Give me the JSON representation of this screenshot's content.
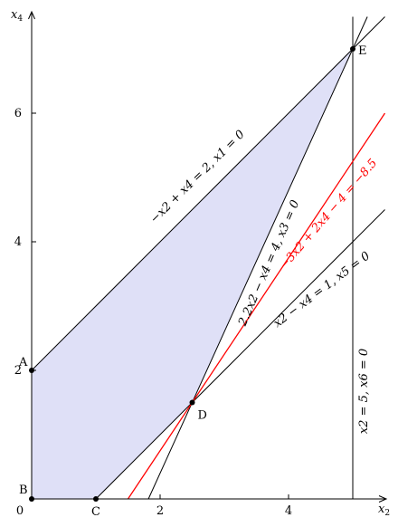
{
  "axes": {
    "x_label": "x2",
    "y_label": "x4",
    "x_label_main": "x",
    "x_label_sub": "2",
    "y_label_main": "x",
    "y_label_sub": "4",
    "origin_label": "0",
    "x_ticks": [
      {
        "value": 2,
        "label": "2"
      },
      {
        "value": 4,
        "label": "4"
      }
    ],
    "y_ticks": [
      {
        "value": 2,
        "label": "2"
      },
      {
        "value": 4,
        "label": "4"
      },
      {
        "value": 6,
        "label": "6"
      }
    ],
    "x_range": [
      0,
      5.5
    ],
    "y_range": [
      0,
      7.5
    ]
  },
  "region": {
    "vertices": [
      [
        0,
        0
      ],
      [
        1,
        0
      ],
      [
        2.5,
        1.5
      ],
      [
        5,
        7
      ],
      [
        0,
        2
      ]
    ],
    "fill": "#dfe0f7"
  },
  "points": [
    {
      "id": "A",
      "label": "A",
      "x": 0,
      "y": 2
    },
    {
      "id": "B",
      "label": "B",
      "x": 0,
      "y": 0
    },
    {
      "id": "C",
      "label": "C",
      "x": 1,
      "y": 0
    },
    {
      "id": "D",
      "label": "D",
      "x": 2.5,
      "y": 1.5
    },
    {
      "id": "E",
      "label": "E",
      "x": 5,
      "y": 7
    }
  ],
  "lines": [
    {
      "id": "x1",
      "label": "−x2 + x4 = 2, x1 = 0",
      "color": "#000000"
    },
    {
      "id": "x3",
      "label": "2.2x2 − x4 = 4, x3 = 0",
      "color": "#000000"
    },
    {
      "id": "x5",
      "label": "x2 − x4 = 1, x5 = 0",
      "color": "#000000"
    },
    {
      "id": "x6",
      "label": "x2 = 5, x6 = 0",
      "color": "#000000"
    },
    {
      "id": "obj",
      "label": "−3x2 + 2x4 − 4 = −8.5",
      "color": "#ff0000"
    }
  ]
}
